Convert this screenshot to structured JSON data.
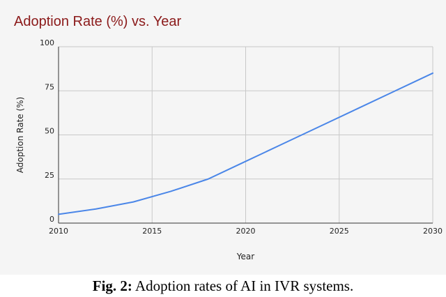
{
  "caption": {
    "label": "Fig. 2:",
    "text": "Adoption rates of AI in IVR systems."
  },
  "chart_data": {
    "type": "line",
    "title": "Adoption Rate (%) vs. Year",
    "xlabel": "Year",
    "ylabel": "Adoption Rate (%)",
    "xlim": [
      2010,
      2030
    ],
    "ylim": [
      0,
      100
    ],
    "x_ticks": [
      2010,
      2015,
      2020,
      2025,
      2030
    ],
    "y_ticks": [
      0,
      25,
      50,
      75,
      100
    ],
    "grid": true,
    "line_color": "#4a86e8",
    "series": [
      {
        "x": [
          2010,
          2012,
          2014,
          2016,
          2018,
          2020,
          2022,
          2024,
          2026,
          2028,
          2030
        ],
        "values": [
          5,
          8,
          12,
          18,
          25,
          35,
          45,
          55,
          65,
          75,
          85
        ]
      }
    ]
  }
}
